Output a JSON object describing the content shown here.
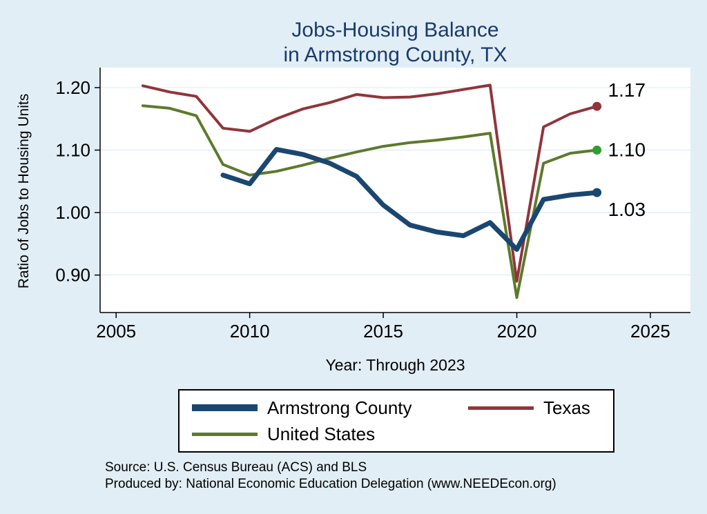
{
  "colors": {
    "background": "#e1eef6",
    "title": "#1b3a6b",
    "plot_background": "#ffffff",
    "gridline": "#d8e8f2",
    "axis": "#000000"
  },
  "title": {
    "line1": "Jobs-Housing Balance",
    "line2": "in Armstrong County, TX"
  },
  "chart_data": {
    "type": "line",
    "title": "Jobs-Housing Balance in Armstrong County, TX",
    "xlabel": "Year: Through 2023",
    "ylabel": "Ratio of Jobs to Housing Units",
    "xlim": [
      2004.4,
      2026.5
    ],
    "ylim": [
      0.84,
      1.232
    ],
    "xticks": [
      2005,
      2010,
      2015,
      2020,
      2025
    ],
    "yticks": [
      0.9,
      1.0,
      1.1,
      1.2
    ],
    "grid": "horizontal-light",
    "legend_position": "bottom",
    "draw_order": [
      1,
      2,
      0
    ],
    "series": [
      {
        "name": "Armstrong County",
        "color": "#1a476f",
        "width": 7,
        "end_label": "1.03",
        "label_dy": 25,
        "x": [
          2009,
          2010,
          2011,
          2012,
          2013,
          2014,
          2015,
          2016,
          2017,
          2018,
          2019,
          2020,
          2021,
          2022,
          2023
        ],
        "y": [
          1.06,
          1.046,
          1.101,
          1.093,
          1.079,
          1.058,
          1.012,
          0.98,
          0.969,
          0.963,
          0.984,
          0.941,
          1.021,
          1.028,
          1.032
        ]
      },
      {
        "name": "Texas",
        "color": "#90353b",
        "width": 4,
        "end_label": "1.17",
        "label_dy": -23,
        "x": [
          2006,
          2007,
          2008,
          2009,
          2010,
          2011,
          2012,
          2013,
          2014,
          2015,
          2016,
          2017,
          2018,
          2019,
          2020,
          2021,
          2022,
          2023
        ],
        "y": [
          1.203,
          1.193,
          1.186,
          1.135,
          1.13,
          1.15,
          1.166,
          1.176,
          1.189,
          1.184,
          1.185,
          1.19,
          1.197,
          1.204,
          0.89,
          1.137,
          1.158,
          1.17
        ]
      },
      {
        "name": "United States",
        "color": "#5d7a2c",
        "dot_color": "#2e9e2e",
        "width": 4,
        "end_label": "1.10",
        "label_dy": 0,
        "x": [
          2006,
          2007,
          2008,
          2009,
          2010,
          2011,
          2012,
          2013,
          2014,
          2015,
          2016,
          2017,
          2018,
          2019,
          2020,
          2021,
          2022,
          2023
        ],
        "y": [
          1.171,
          1.167,
          1.155,
          1.077,
          1.06,
          1.066,
          1.076,
          1.087,
          1.097,
          1.106,
          1.112,
          1.116,
          1.121,
          1.127,
          0.864,
          1.079,
          1.095,
          1.1
        ]
      }
    ]
  },
  "legend": {
    "items": [
      "Armstrong County",
      "Texas",
      "United States"
    ]
  },
  "footer": {
    "source": "Source: U.S. Census Bureau (ACS) and BLS",
    "produced_by": "Produced by: National Economic Education Delegation (www.NEEDEcon.org)"
  }
}
